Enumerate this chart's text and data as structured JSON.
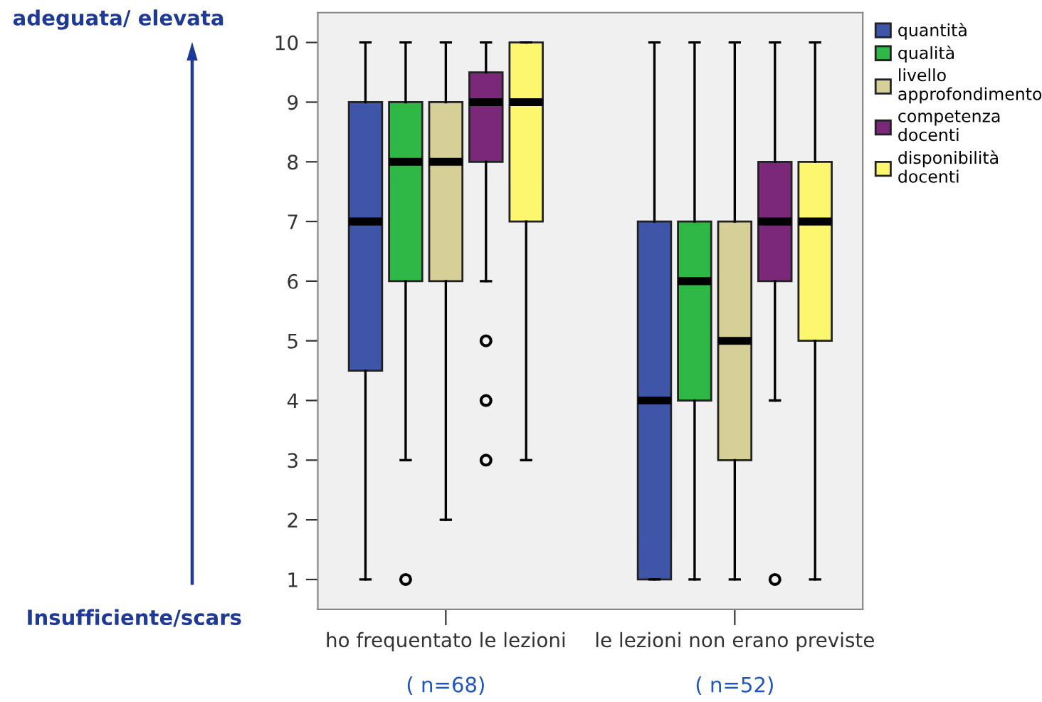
{
  "chart_data": {
    "type": "box",
    "categories": [
      "ho frequentato le lezioni",
      "le lezioni non erano previste"
    ],
    "series": [
      {
        "name": "quantità",
        "color": "#3f55a8",
        "boxes": [
          {
            "low": 1,
            "q1": 4.5,
            "median": 7,
            "q3": 9,
            "high": 10
          },
          {
            "low": 1,
            "q1": 1,
            "median": 4,
            "q3": 7,
            "high": 10
          }
        ]
      },
      {
        "name": "qualità",
        "color": "#2fb845",
        "boxes": [
          {
            "low": 3,
            "q1": 6,
            "median": 8,
            "q3": 9,
            "high": 10,
            "outliers": [
              1
            ]
          },
          {
            "low": 1,
            "q1": 4,
            "median": 6,
            "q3": 7,
            "high": 10
          }
        ]
      },
      {
        "name": "livello approfondimento",
        "color": "#d6cf98",
        "boxes": [
          {
            "low": 2,
            "q1": 6,
            "median": 8,
            "q3": 9,
            "high": 10
          },
          {
            "low": 1,
            "q1": 3,
            "median": 5,
            "q3": 7,
            "high": 10
          }
        ]
      },
      {
        "name": "competenza docenti",
        "color": "#7b287b",
        "boxes": [
          {
            "low": 6,
            "q1": 8,
            "median": 9,
            "q3": 9.5,
            "high": 10,
            "outliers": [
              5,
              4,
              3
            ]
          },
          {
            "low": 4,
            "q1": 6,
            "median": 7,
            "q3": 8,
            "high": 10,
            "outliers": [
              1
            ]
          }
        ]
      },
      {
        "name": "disponibilità docenti",
        "color": "#fdf76f",
        "boxes": [
          {
            "low": 3,
            "q1": 7,
            "median": 9,
            "q3": 10,
            "high": 10
          },
          {
            "low": 1,
            "q1": 5,
            "median": 7,
            "q3": 8,
            "high": 10
          }
        ]
      }
    ],
    "ylim": [
      0.5,
      10.5
    ],
    "yticks": [
      1,
      2,
      3,
      4,
      5,
      6,
      7,
      8,
      9,
      10
    ],
    "grid": false,
    "legend": "right",
    "annotations": [
      "adeguata/ elevata",
      "Insufficiente/scars",
      "( n=68)",
      "( n=52)"
    ]
  }
}
